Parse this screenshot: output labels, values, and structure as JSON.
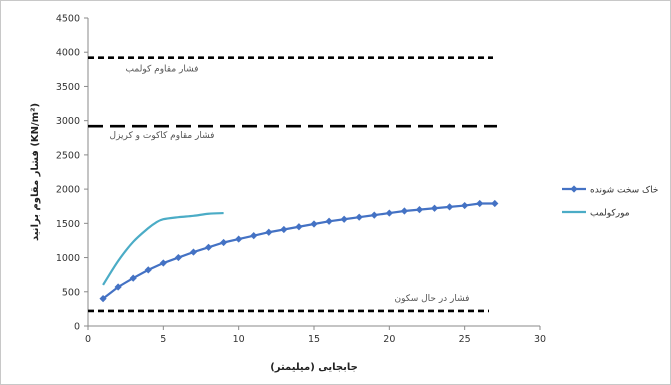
{
  "chart_data": {
    "type": "line",
    "xlabel": "جابجایی (میلیمتر)",
    "ylabel": "فشار مقاوم برانید (KN/m²)",
    "xlim": [
      0,
      30
    ],
    "ylim": [
      0,
      4500
    ],
    "xticks": [
      0,
      5,
      10,
      15,
      20,
      25,
      30
    ],
    "yticks": [
      0,
      500,
      1000,
      1500,
      2000,
      2500,
      3000,
      3500,
      4000,
      4500
    ],
    "grid": false,
    "legend_position": "right",
    "series": [
      {
        "name": "خاک سخت شونده",
        "color": "#4472c4",
        "marker": "diamond",
        "x": [
          1,
          2,
          3,
          4,
          5,
          6,
          7,
          8,
          9,
          10,
          11,
          12,
          13,
          14,
          15,
          16,
          17,
          18,
          19,
          20,
          21,
          22,
          23,
          24,
          25,
          26,
          27
        ],
        "y": [
          400,
          570,
          700,
          820,
          920,
          1000,
          1080,
          1150,
          1220,
          1270,
          1320,
          1370,
          1410,
          1450,
          1490,
          1530,
          1560,
          1590,
          1620,
          1650,
          1680,
          1700,
          1720,
          1740,
          1760,
          1790,
          1790
        ]
      },
      {
        "name": "مورکولمب",
        "color": "#4bacc6",
        "marker": "none",
        "x": [
          1,
          2,
          3,
          4,
          4.5,
          5,
          6,
          7,
          8,
          9
        ],
        "y": [
          600,
          950,
          1230,
          1430,
          1510,
          1560,
          1590,
          1610,
          1640,
          1650
        ]
      }
    ],
    "reference_lines": [
      {
        "label": "فشار مقاوم کولمب",
        "y": 3920,
        "dash": "short"
      },
      {
        "label": "فشار مقاوم کاکوت و کریزل",
        "y": 2920,
        "dash": "long"
      },
      {
        "label": "فشار در حال سکون",
        "y": 220,
        "dash": "short"
      }
    ]
  }
}
